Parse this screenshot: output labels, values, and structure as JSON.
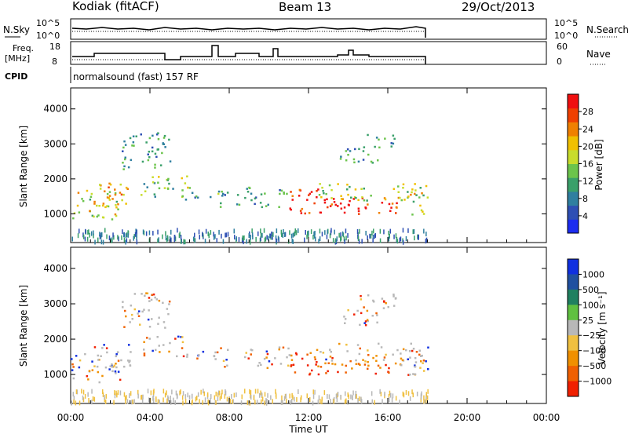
{
  "header": {
    "radar": "Kodiak (fitACF)",
    "beam": "Beam 13",
    "date": "29/Oct/2013"
  },
  "noise_panel": {
    "left_label": "N.Sky",
    "right_label": "N.Search",
    "left_ticks": [
      "10^5",
      "10^0"
    ],
    "right_ticks": [
      "10^5",
      "10^0"
    ]
  },
  "freq_panel": {
    "left_label_1": "Freq.",
    "left_label_2": "[MHz]",
    "right_label": "Nave",
    "left_ticks": [
      "18",
      "8"
    ],
    "right_ticks": [
      "60",
      "0"
    ]
  },
  "cpid_panel": {
    "label": "CPID",
    "text": "normalsound (fast) 157 RF"
  },
  "colors": {
    "power": [
      "#1c2cf0",
      "#2e4fb4",
      "#2f7fa0",
      "#3aa06a",
      "#6cc44c",
      "#c8dc2c",
      "#f0c000",
      "#f08000",
      "#f04000",
      "#f01010"
    ],
    "velocity": [
      "#1030e0",
      "#2050a0",
      "#208060",
      "#60c040",
      "#b8b8b8",
      "#f0c040",
      "#f09000",
      "#f06000",
      "#f02000"
    ]
  },
  "chart_data": [
    {
      "type": "heatmap",
      "name": "power",
      "ylabel": "Slant Range [km]",
      "yticks": [
        1000,
        2000,
        3000,
        4000
      ],
      "ylim": [
        180,
        4600
      ],
      "colorbar": {
        "label": "Power [dB]",
        "ticks": [
          "28",
          "24",
          "20",
          "16",
          "12",
          "8",
          "4"
        ],
        "range": [
          0,
          32
        ]
      }
    },
    {
      "type": "heatmap",
      "name": "velocity",
      "ylabel": "Slant Range [km]",
      "yticks": [
        1000,
        2000,
        3000,
        4000
      ],
      "ylim": [
        180,
        4600
      ],
      "colorbar": {
        "label": "Velocity [m s⁻¹]",
        "ticks": [
          "1000",
          "500",
          "100",
          "25",
          "−25",
          "−100",
          "−500",
          "−1000"
        ]
      }
    }
  ],
  "x_axis": {
    "label": "Time UT",
    "ticks": [
      "00:00",
      "04:00",
      "08:00",
      "12:00",
      "16:00",
      "20:00",
      "00:00"
    ],
    "range_hours": [
      0,
      24
    ],
    "data_end_hour": 18
  },
  "echo_regions": [
    {
      "t": [
        0.0,
        2.5
      ],
      "r": [
        800,
        1700
      ],
      "p": 18
    },
    {
      "t": [
        1.0,
        3.0
      ],
      "r": [
        1100,
        1900
      ],
      "p": 22
    },
    {
      "t": [
        2.5,
        5.0
      ],
      "r": [
        2300,
        3400
      ],
      "p": 10
    },
    {
      "t": [
        3.5,
        6.0
      ],
      "r": [
        1500,
        2100
      ],
      "p": 14
    },
    {
      "t": [
        5.5,
        7.5
      ],
      "r": [
        1400,
        1700
      ],
      "p": 12
    },
    {
      "t": [
        7.5,
        11.0
      ],
      "r": [
        1200,
        1800
      ],
      "p": 10
    },
    {
      "t": [
        11.0,
        12.5
      ],
      "r": [
        1000,
        1800
      ],
      "p": 30
    },
    {
      "t": [
        12.5,
        16.5
      ],
      "r": [
        1000,
        1500
      ],
      "p": 29
    },
    {
      "t": [
        12.5,
        18.0
      ],
      "r": [
        1400,
        1900
      ],
      "p": 16
    },
    {
      "t": [
        13.5,
        15.5
      ],
      "r": [
        2400,
        2900
      ],
      "p": 10
    },
    {
      "t": [
        14.5,
        16.5
      ],
      "r": [
        2900,
        3300
      ],
      "p": 8
    },
    {
      "t": [
        16.5,
        18.0
      ],
      "r": [
        1000,
        1800
      ],
      "p": 18
    }
  ]
}
